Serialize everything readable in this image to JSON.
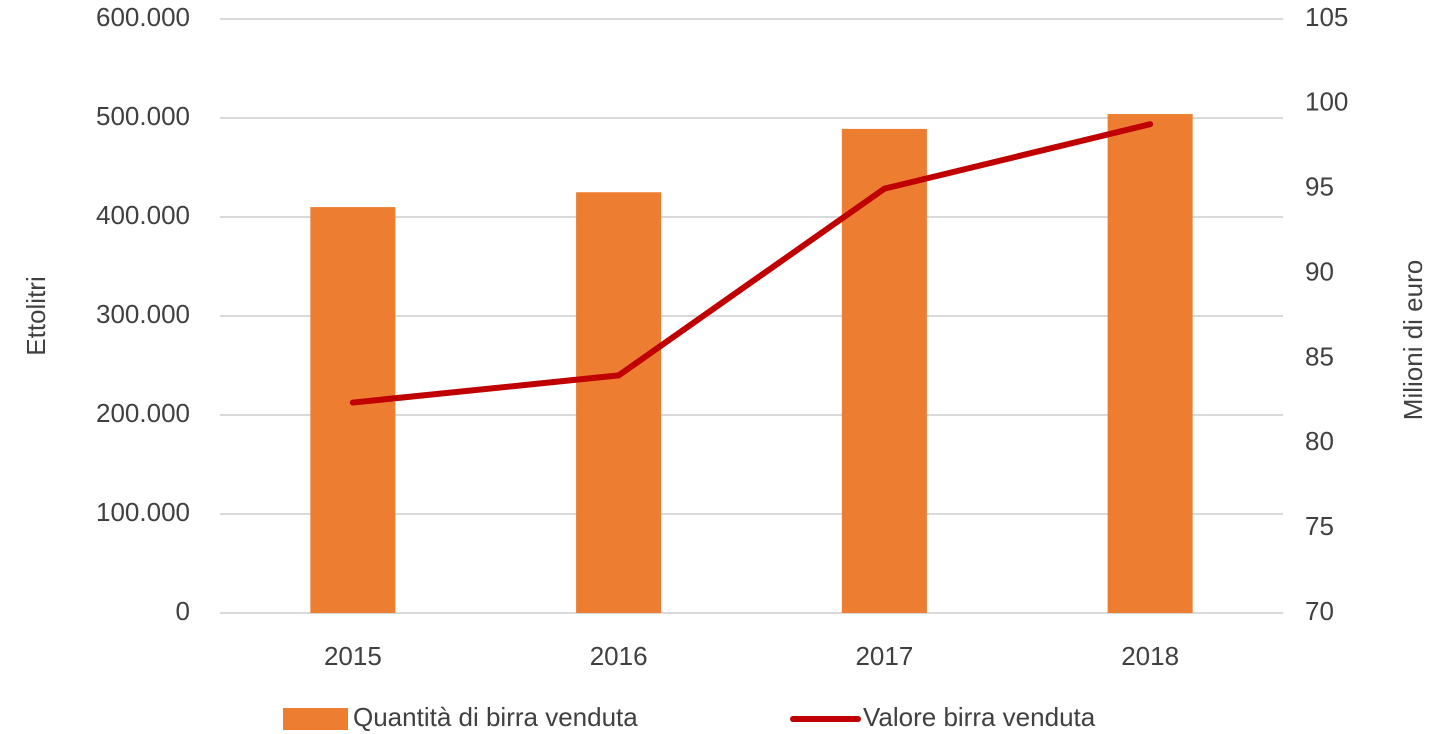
{
  "chart_data": {
    "type": "bar",
    "categories": [
      "2015",
      "2016",
      "2017",
      "2018"
    ],
    "series": [
      {
        "name": "Quantità di birra venduta",
        "type": "bar",
        "color": "#ed7d31",
        "values": [
          410000,
          425000,
          489000,
          504000
        ]
      },
      {
        "name": "Valore birra venduta",
        "type": "line",
        "axis": "y2",
        "color": "#c00000",
        "values": [
          82.4,
          84.0,
          95.0,
          98.8
        ]
      }
    ],
    "ylabel": "Ettolitri",
    "y2label": "Milioni di euro",
    "ylim": [
      0,
      600000
    ],
    "yticks": [
      0,
      {
        "value": 100000,
        "label": "100.000"
      },
      {
        "value": 200000,
        "label": "200.000"
      },
      {
        "value": 300000,
        "label": "300.000"
      },
      {
        "value": 400000,
        "label": "400.000"
      },
      {
        "value": 500000,
        "label": "500.000"
      },
      {
        "value": 600000,
        "label": "600.000"
      }
    ],
    "y2lim": [
      70,
      105
    ],
    "y2ticks": [
      70,
      75,
      80,
      85,
      90,
      95,
      100,
      105
    ],
    "grid": true,
    "legend": "bottom"
  }
}
